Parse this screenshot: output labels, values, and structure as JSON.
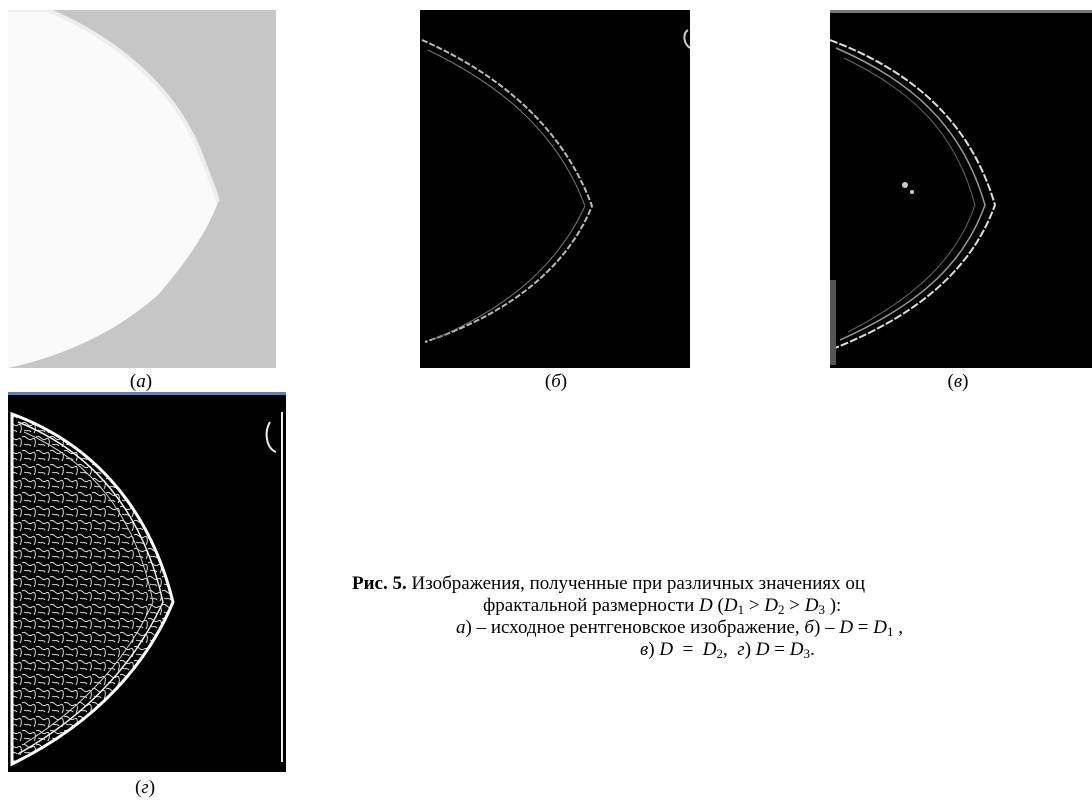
{
  "panels": [
    {
      "label": [
        "(",
        "а",
        ")"
      ]
    },
    {
      "label": [
        "(",
        "б",
        ")"
      ]
    },
    {
      "label": [
        "(",
        "в",
        ")"
      ]
    },
    {
      "label": [
        "(",
        "г",
        ")"
      ]
    }
  ],
  "caption": {
    "lines": [
      [
        "Рис. 5.",
        " Изображения, полученные при различных значениях оц"
      ],
      [
        "фрактальной размерности ",
        "D",
        " (",
        "D",
        "1",
        " > ",
        "D",
        "2",
        " > ",
        "D",
        "3",
        " ):"
      ],
      [
        "а",
        ") – исходное рентгеновское изображение, ",
        "б",
        ") – ",
        "D",
        " = ",
        "D",
        "1",
        " ,"
      ],
      [
        "в",
        ") ",
        "D",
        "  =  ",
        "D",
        "2",
        ",  ",
        "г",
        ") ",
        "D",
        " = ",
        "D",
        "3",
        "."
      ]
    ]
  }
}
